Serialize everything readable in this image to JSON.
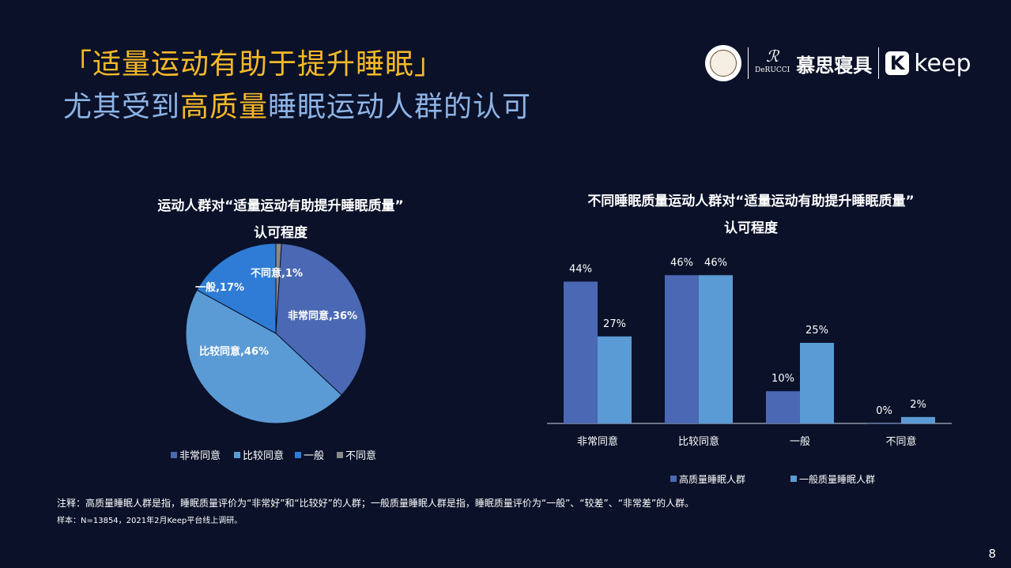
{
  "header": {
    "title_line1": "「适量运动有助于提升睡眠」",
    "title_line2_pre": "尤其受到",
    "title_line2_highlight": "高质量",
    "title_line2_post": "睡眠运动人群的认可"
  },
  "logos": {
    "derucci_mark": "ℛ",
    "derucci_name": "DeRUCCI",
    "derucci_cn": "慕思寝具",
    "keep_icon": "K",
    "keep_word": "keep"
  },
  "colors": {
    "background": "#0a1128",
    "title_highlight": "#f7b928",
    "title_blue": "#8db4e6",
    "series_dark": "#4a68b3",
    "series_light": "#5b9bd5",
    "pie_very_agree": "#4a68b3",
    "pie_agree": "#5b9bd5",
    "pie_neutral": "#2e7cd6",
    "pie_disagree": "#8a8a8a"
  },
  "chart_data": [
    {
      "type": "pie",
      "title_line1": "运动人群对“适量运动有助提升睡眠质量”",
      "title_line2": "认可程度",
      "slices": [
        {
          "label": "非常同意",
          "value": 36,
          "display": "非常同意,36%"
        },
        {
          "label": "比较同意",
          "value": 46,
          "display": "比较同意,46%"
        },
        {
          "label": "一般",
          "value": 17,
          "display": "一般,17%"
        },
        {
          "label": "不同意",
          "value": 1,
          "display": "不同意,1%"
        }
      ],
      "legend_position": "bottom"
    },
    {
      "type": "bar",
      "title_line1": "不同睡眠质量运动人群对“适量运动有助提升睡眠质量”",
      "title_line2": "认可程度",
      "categories": [
        "非常同意",
        "比较同意",
        "一般",
        "不同意"
      ],
      "series": [
        {
          "name": "高质量睡眠人群",
          "values": [
            44,
            46,
            10,
            0
          ],
          "labels": [
            "44%",
            "46%",
            "10%",
            "0%"
          ]
        },
        {
          "name": "一般质量睡眠人群",
          "values": [
            27,
            46,
            25,
            2
          ],
          "labels": [
            "27%",
            "46%",
            "25%",
            "2%"
          ]
        }
      ],
      "ylim": [
        0,
        50
      ],
      "grid": false,
      "legend_position": "bottom"
    }
  ],
  "notes": {
    "line1": "注释：高质量睡眠人群是指，睡眠质量评价为“非常好”和“比较好”的人群；一般质量睡眠人群是指，睡眠质量评价为“一般”、“较差”、“非常差”的人群。",
    "line2": "样本：N=13854，2021年2月Keep平台线上调研。"
  },
  "page_number": "8"
}
